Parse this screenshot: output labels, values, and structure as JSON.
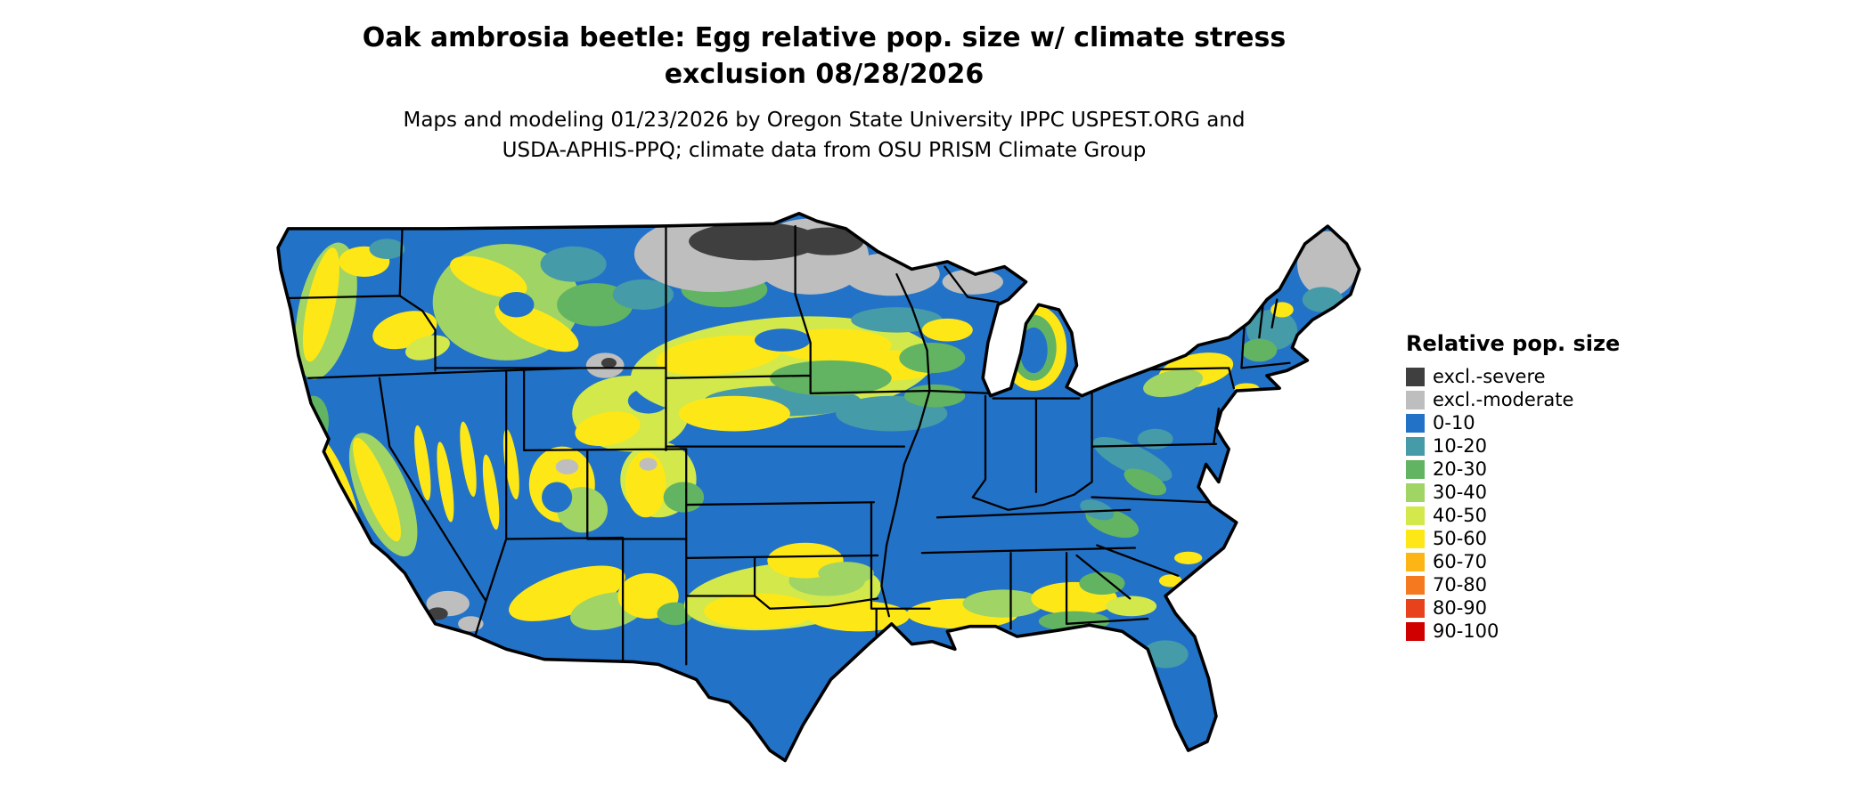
{
  "title": {
    "line1": "Oak ambrosia beetle: Egg relative pop. size w/ climate stress",
    "line2": "exclusion 08/28/2026"
  },
  "subtitle": {
    "line1": "Maps and modeling 01/23/2026 by Oregon State University IPPC USPEST.ORG and",
    "line2": "USDA-APHIS-PPQ; climate data from OSU PRISM Climate Group"
  },
  "legend": {
    "title": "Relative pop. size",
    "items": [
      {
        "label": "excl.-severe",
        "color": "#3F3F3F"
      },
      {
        "label": "excl.-moderate",
        "color": "#BEBEBE"
      },
      {
        "label": "0-10",
        "color": "#2273C8"
      },
      {
        "label": "10-20",
        "color": "#459BA8"
      },
      {
        "label": "20-30",
        "color": "#62B462"
      },
      {
        "label": "30-40",
        "color": "#A0D465"
      },
      {
        "label": "40-50",
        "color": "#D2E84B"
      },
      {
        "label": "50-60",
        "color": "#FEE716"
      },
      {
        "label": "60-70",
        "color": "#FCB515"
      },
      {
        "label": "70-80",
        "color": "#F5791F"
      },
      {
        "label": "80-90",
        "color": "#E8421C"
      },
      {
        "label": "90-100",
        "color": "#D00000"
      }
    ]
  }
}
